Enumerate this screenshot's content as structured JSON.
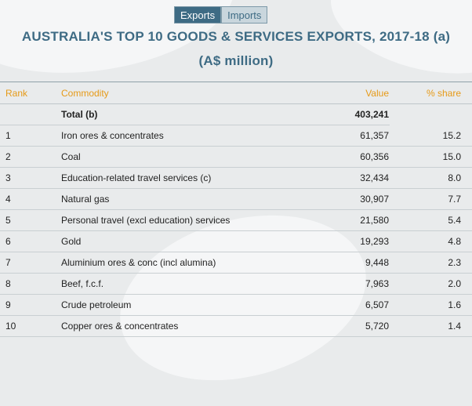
{
  "tabs": [
    {
      "label": "Exports",
      "active": true
    },
    {
      "label": "Imports",
      "active": false
    }
  ],
  "title": {
    "line1": "AUSTRALIA'S TOP 10 GOODS & SERVICES EXPORTS, 2017-18 (a)",
    "line2": "(A$ million)"
  },
  "table": {
    "headers": {
      "rank": "Rank",
      "commodity": "Commodity",
      "value": "Value",
      "share": "% share"
    },
    "total": {
      "label": "Total (b)",
      "value": "403,241"
    },
    "rows": [
      {
        "rank": "1",
        "commodity": "Iron ores & concentrates",
        "value": "61,357",
        "share": "15.2"
      },
      {
        "rank": "2",
        "commodity": "Coal",
        "value": "60,356",
        "share": "15.0"
      },
      {
        "rank": "3",
        "commodity": "Education-related travel services (c)",
        "value": "32,434",
        "share": "8.0"
      },
      {
        "rank": "4",
        "commodity": "Natural gas",
        "value": "30,907",
        "share": "7.7"
      },
      {
        "rank": "5",
        "commodity": "Personal travel (excl education) services",
        "value": "21,580",
        "share": "5.4"
      },
      {
        "rank": "6",
        "commodity": "Gold",
        "value": "19,293",
        "share": "4.8"
      },
      {
        "rank": "7",
        "commodity": "Aluminium ores & conc (incl alumina)",
        "value": "9,448",
        "share": "2.3"
      },
      {
        "rank": "8",
        "commodity": "Beef, f.c.f.",
        "value": "7,963",
        "share": "2.0"
      },
      {
        "rank": "9",
        "commodity": "Crude petroleum",
        "value": "6,507",
        "share": "1.6"
      },
      {
        "rank": "10",
        "commodity": "Copper ores & concentrates",
        "value": "5,720",
        "share": "1.4"
      }
    ]
  },
  "colors": {
    "accent": "#3e6b84",
    "header": "#e69a17"
  }
}
